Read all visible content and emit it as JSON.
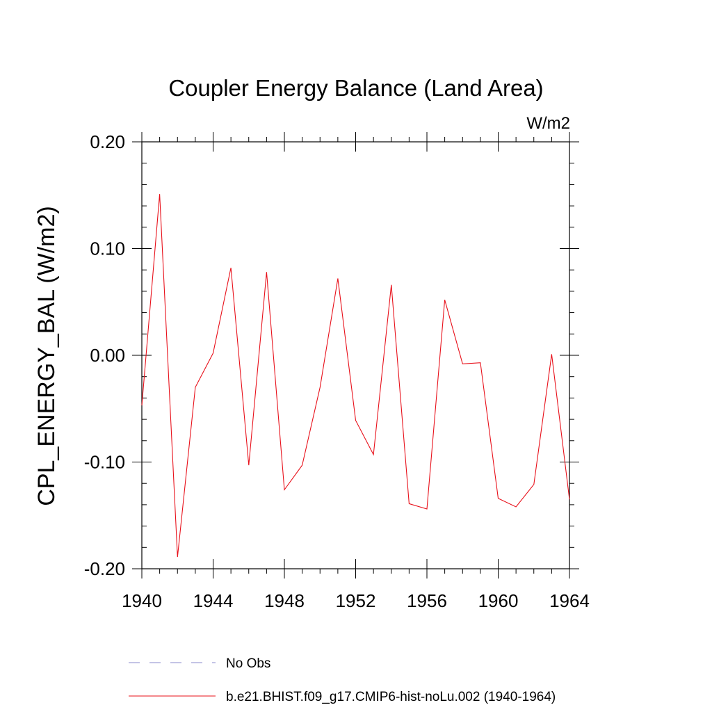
{
  "chart_data": {
    "type": "line",
    "title": "Coupler Energy Balance (Land Area)",
    "units_label": "W/m2",
    "ylabel": "CPL_ENERGY_BAL  (W/m2)",
    "xlabel": "",
    "xlim": [
      1940,
      1964
    ],
    "ylim": [
      -0.2,
      0.2
    ],
    "x_ticks": [
      1940,
      1944,
      1948,
      1952,
      1956,
      1960,
      1964
    ],
    "x_tick_labels": [
      "1940",
      "1944",
      "1948",
      "1952",
      "1956",
      "1960",
      "1964"
    ],
    "y_ticks": [
      -0.2,
      -0.1,
      0.0,
      0.1,
      0.2
    ],
    "y_tick_labels": [
      "-0.20",
      "-0.10",
      "0.00",
      "0.10",
      "0.20"
    ],
    "grid": false,
    "legend_position": "bottom",
    "series": [
      {
        "name": "No Obs",
        "color": "#8888cc",
        "dash": "dashed",
        "x": [],
        "y": []
      },
      {
        "name": "b.e21.BHIST.f09_g17.CMIP6-hist-noLu.002 (1940-1964)",
        "color": "#e8101a",
        "dash": "solid",
        "x": [
          1940,
          1941,
          1942,
          1943,
          1944,
          1945,
          1946,
          1947,
          1948,
          1949,
          1950,
          1951,
          1952,
          1953,
          1954,
          1955,
          1956,
          1957,
          1958,
          1959,
          1960,
          1961,
          1962,
          1963,
          1964
        ],
        "y": [
          -0.047,
          0.151,
          -0.189,
          -0.03,
          0.002,
          0.082,
          -0.103,
          0.078,
          -0.126,
          -0.103,
          -0.03,
          0.072,
          -0.061,
          -0.093,
          0.066,
          -0.139,
          -0.144,
          0.052,
          -0.008,
          -0.007,
          -0.134,
          -0.142,
          -0.121,
          0.001,
          -0.135
        ]
      }
    ]
  }
}
